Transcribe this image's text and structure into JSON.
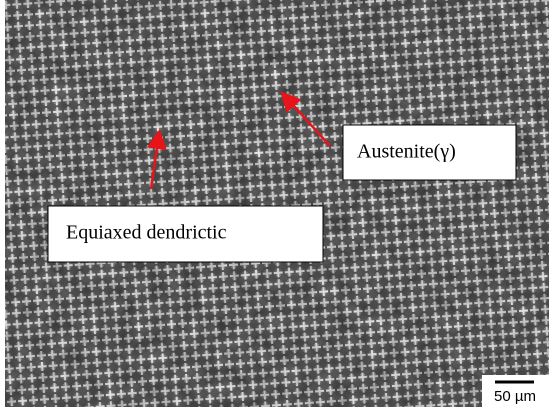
{
  "annotations": [
    {
      "label": "Austenite(γ)"
    },
    {
      "label": "Equiaxed dendrictic"
    }
  ],
  "scale_bar": {
    "label": "50 µm"
  }
}
